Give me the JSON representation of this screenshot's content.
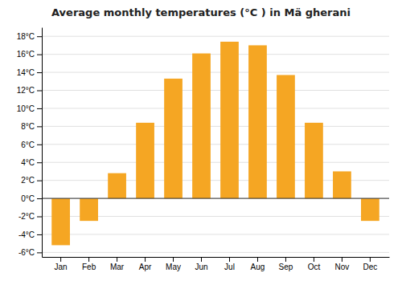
{
  "chart_data": {
    "type": "bar",
    "title": "Average monthly temperatures (°C ) in Mä gherani",
    "categories": [
      "Jan",
      "Feb",
      "Mar",
      "Apr",
      "May",
      "Jun",
      "Jul",
      "Aug",
      "Sep",
      "Oct",
      "Nov",
      "Dec"
    ],
    "values": [
      -5.2,
      -2.5,
      2.8,
      8.4,
      13.3,
      16.1,
      17.4,
      17.0,
      13.7,
      8.4,
      3.0,
      -2.5
    ],
    "color": "#F5A623",
    "ylim": [
      -6.5,
      19
    ],
    "yticks": [
      {
        "value": -6,
        "label": "-6°C"
      },
      {
        "value": -4,
        "label": "-4°C"
      },
      {
        "value": -2,
        "label": "-2°C"
      },
      {
        "value": 0,
        "label": "0°C"
      },
      {
        "value": 2,
        "label": "2°C"
      },
      {
        "value": 4,
        "label": "4°C"
      },
      {
        "value": 6,
        "label": "6°C"
      },
      {
        "value": 8,
        "label": "8°C"
      },
      {
        "value": 10,
        "label": "10°C"
      },
      {
        "value": 12,
        "label": "12°C"
      },
      {
        "value": 14,
        "label": "14°C"
      },
      {
        "value": 16,
        "label": "16°C"
      },
      {
        "value": 18,
        "label": "18°C"
      }
    ],
    "grid": true
  }
}
